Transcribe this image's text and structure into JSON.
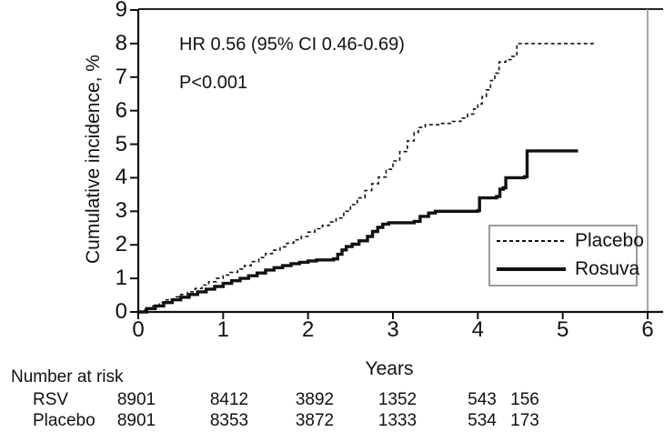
{
  "figure": {
    "background": "#ffffff",
    "curve_color": "#111111",
    "frame_right_color": "#9d9d9d"
  },
  "chart_data": {
    "type": "line",
    "subtype": "kaplan-meier-step",
    "title": "",
    "xlabel": "Years",
    "ylabel": "Cumulative incidence, %",
    "xlim": [
      0,
      6
    ],
    "ylim": [
      0,
      9
    ],
    "grid": false,
    "x_ticks": [
      0,
      1,
      2,
      3,
      4,
      5,
      6
    ],
    "y_ticks": [
      0,
      1,
      2,
      3,
      4,
      5,
      6,
      7,
      8,
      9
    ],
    "annotations": {
      "hr": "HR 0.56 (95% CI 0.46-0.69)",
      "p_value": "P<0.001"
    },
    "legend": {
      "position": "lower right",
      "entries": [
        {
          "label": "Placebo",
          "style": "dashed"
        },
        {
          "label": "Rosuva",
          "style": "solid"
        }
      ]
    },
    "series": [
      {
        "name": "Placebo",
        "style": "dashed",
        "points": [
          [
            0,
            0
          ],
          [
            0.08,
            0.08
          ],
          [
            0.17,
            0.18
          ],
          [
            0.25,
            0.28
          ],
          [
            0.33,
            0.36
          ],
          [
            0.42,
            0.45
          ],
          [
            0.5,
            0.52
          ],
          [
            0.58,
            0.6
          ],
          [
            0.67,
            0.7
          ],
          [
            0.75,
            0.8
          ],
          [
            0.83,
            0.9
          ],
          [
            0.92,
            1.0
          ],
          [
            1.0,
            1.1
          ],
          [
            1.08,
            1.18
          ],
          [
            1.17,
            1.28
          ],
          [
            1.25,
            1.38
          ],
          [
            1.33,
            1.5
          ],
          [
            1.42,
            1.62
          ],
          [
            1.5,
            1.74
          ],
          [
            1.58,
            1.84
          ],
          [
            1.67,
            1.94
          ],
          [
            1.75,
            2.05
          ],
          [
            1.83,
            2.15
          ],
          [
            1.92,
            2.25
          ],
          [
            2.0,
            2.38
          ],
          [
            2.08,
            2.48
          ],
          [
            2.17,
            2.58
          ],
          [
            2.25,
            2.68
          ],
          [
            2.33,
            2.8
          ],
          [
            2.42,
            3.0
          ],
          [
            2.5,
            3.2
          ],
          [
            2.58,
            3.4
          ],
          [
            2.67,
            3.62
          ],
          [
            2.75,
            3.82
          ],
          [
            2.83,
            4.02
          ],
          [
            2.92,
            4.25
          ],
          [
            3.0,
            4.5
          ],
          [
            3.08,
            4.78
          ],
          [
            3.17,
            5.1
          ],
          [
            3.25,
            5.35
          ],
          [
            3.3,
            5.5
          ],
          [
            3.38,
            5.58
          ],
          [
            3.55,
            5.62
          ],
          [
            3.7,
            5.68
          ],
          [
            3.8,
            5.78
          ],
          [
            3.88,
            5.9
          ],
          [
            3.95,
            6.05
          ],
          [
            4.0,
            6.2
          ],
          [
            4.05,
            6.42
          ],
          [
            4.1,
            6.62
          ],
          [
            4.15,
            6.9
          ],
          [
            4.2,
            7.12
          ],
          [
            4.25,
            7.45
          ],
          [
            4.33,
            7.52
          ],
          [
            4.4,
            7.62
          ],
          [
            4.46,
            8.0
          ],
          [
            5.4,
            8.0
          ]
        ]
      },
      {
        "name": "Rosuva",
        "style": "solid",
        "points": [
          [
            0,
            0
          ],
          [
            0.1,
            0.1
          ],
          [
            0.2,
            0.18
          ],
          [
            0.3,
            0.28
          ],
          [
            0.4,
            0.36
          ],
          [
            0.5,
            0.44
          ],
          [
            0.6,
            0.52
          ],
          [
            0.7,
            0.6
          ],
          [
            0.8,
            0.68
          ],
          [
            0.9,
            0.76
          ],
          [
            1.0,
            0.85
          ],
          [
            1.1,
            0.93
          ],
          [
            1.2,
            1.0
          ],
          [
            1.3,
            1.08
          ],
          [
            1.4,
            1.16
          ],
          [
            1.5,
            1.25
          ],
          [
            1.6,
            1.32
          ],
          [
            1.7,
            1.38
          ],
          [
            1.8,
            1.44
          ],
          [
            1.9,
            1.48
          ],
          [
            2.0,
            1.52
          ],
          [
            2.1,
            1.55
          ],
          [
            2.3,
            1.58
          ],
          [
            2.35,
            1.72
          ],
          [
            2.4,
            1.85
          ],
          [
            2.45,
            1.95
          ],
          [
            2.52,
            2.02
          ],
          [
            2.6,
            2.12
          ],
          [
            2.7,
            2.25
          ],
          [
            2.76,
            2.4
          ],
          [
            2.82,
            2.52
          ],
          [
            2.88,
            2.62
          ],
          [
            2.95,
            2.66
          ],
          [
            3.25,
            2.7
          ],
          [
            3.32,
            2.85
          ],
          [
            3.42,
            2.95
          ],
          [
            3.5,
            3.0
          ],
          [
            4.0,
            3.02
          ],
          [
            4.02,
            3.4
          ],
          [
            4.22,
            3.44
          ],
          [
            4.26,
            3.66
          ],
          [
            4.3,
            3.7
          ],
          [
            4.33,
            4.0
          ],
          [
            4.55,
            4.03
          ],
          [
            4.58,
            4.8
          ],
          [
            5.18,
            4.8
          ]
        ]
      }
    ],
    "number_at_risk": {
      "title": "Number at risk",
      "rows": [
        {
          "label": "RSV",
          "values": [
            "8901",
            "8412",
            "3892",
            "1352",
            "543",
            "156"
          ]
        },
        {
          "label": "Placebo",
          "values": [
            "8901",
            "8353",
            "3872",
            "1333",
            "534",
            "173"
          ]
        }
      ]
    }
  }
}
